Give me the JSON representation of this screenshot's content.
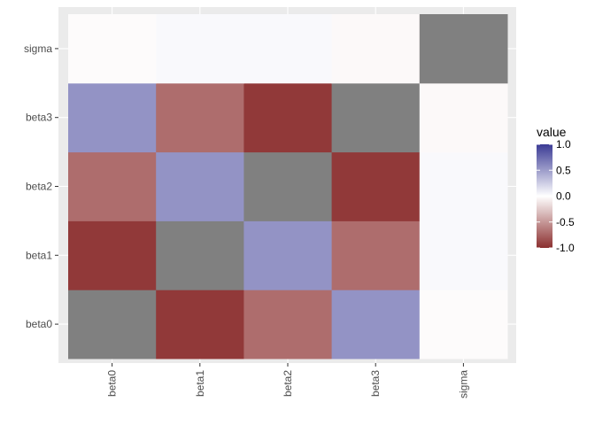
{
  "chart_data": {
    "type": "heatmap",
    "title": "",
    "xlabel": "",
    "ylabel": "",
    "x_categories": [
      "beta0",
      "beta1",
      "beta2",
      "beta3",
      "sigma"
    ],
    "y_categories": [
      "beta0",
      "beta1",
      "beta2",
      "beta3",
      "sigma"
    ],
    "cells": [
      {
        "x": "beta0",
        "y": "beta0",
        "value": null
      },
      {
        "x": "beta1",
        "y": "beta0",
        "value": -0.95
      },
      {
        "x": "beta2",
        "y": "beta0",
        "value": -0.7
      },
      {
        "x": "beta3",
        "y": "beta0",
        "value": 0.55
      },
      {
        "x": "sigma",
        "y": "beta0",
        "value": -0.02
      },
      {
        "x": "beta0",
        "y": "beta1",
        "value": -0.95
      },
      {
        "x": "beta1",
        "y": "beta1",
        "value": null
      },
      {
        "x": "beta2",
        "y": "beta1",
        "value": 0.55
      },
      {
        "x": "beta3",
        "y": "beta1",
        "value": -0.7
      },
      {
        "x": "sigma",
        "y": "beta1",
        "value": 0.03
      },
      {
        "x": "beta0",
        "y": "beta2",
        "value": -0.7
      },
      {
        "x": "beta1",
        "y": "beta2",
        "value": 0.55
      },
      {
        "x": "beta2",
        "y": "beta2",
        "value": null
      },
      {
        "x": "beta3",
        "y": "beta2",
        "value": -0.95
      },
      {
        "x": "sigma",
        "y": "beta2",
        "value": 0.03
      },
      {
        "x": "beta0",
        "y": "beta3",
        "value": 0.55
      },
      {
        "x": "beta1",
        "y": "beta3",
        "value": -0.7
      },
      {
        "x": "beta2",
        "y": "beta3",
        "value": -0.95
      },
      {
        "x": "beta3",
        "y": "beta3",
        "value": null
      },
      {
        "x": "sigma",
        "y": "beta3",
        "value": -0.03
      },
      {
        "x": "beta0",
        "y": "sigma",
        "value": -0.02
      },
      {
        "x": "beta1",
        "y": "sigma",
        "value": 0.03
      },
      {
        "x": "beta2",
        "y": "sigma",
        "value": 0.03
      },
      {
        "x": "beta3",
        "y": "sigma",
        "value": -0.03
      },
      {
        "x": "sigma",
        "y": "sigma",
        "value": null
      }
    ],
    "na_color": "#808080",
    "color_scale": {
      "low": "#8b2f2f",
      "mid": "#ffffff",
      "high": "#3b3b95",
      "range": [
        -1,
        1
      ]
    },
    "legend": {
      "title": "value",
      "labels": [
        "1.0",
        "0.5",
        "0.0",
        "-0.5",
        "-1.0"
      ],
      "label_values": [
        1.0,
        0.5,
        0.0,
        -0.5,
        -1.0
      ],
      "position": "right"
    },
    "panel_background": "#ebebeb",
    "grid": true
  }
}
